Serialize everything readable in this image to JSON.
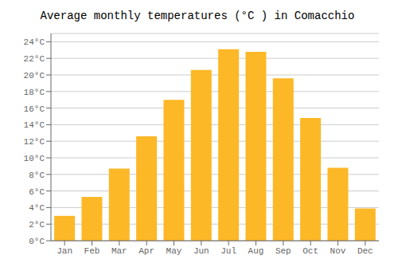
{
  "chart_data": {
    "type": "bar",
    "title": "Average monthly temperatures (°C ) in Comacchio",
    "categories": [
      "Jan",
      "Feb",
      "Mar",
      "Apr",
      "May",
      "Jun",
      "Jul",
      "Aug",
      "Sep",
      "Oct",
      "Nov",
      "Dec"
    ],
    "values": [
      3.0,
      5.3,
      8.7,
      12.6,
      17.0,
      20.6,
      23.1,
      22.8,
      19.6,
      14.8,
      8.8,
      3.9
    ],
    "color": "#FDB827",
    "ylim": [
      0,
      25
    ],
    "yticks": [
      {
        "value": 0,
        "label": "0°C"
      },
      {
        "value": 2,
        "label": "2°C"
      },
      {
        "value": 4,
        "label": "4°C"
      },
      {
        "value": 6,
        "label": "6°C"
      },
      {
        "value": 8,
        "label": "8°C"
      },
      {
        "value": 10,
        "label": "10°C"
      },
      {
        "value": 12,
        "label": "12°C"
      },
      {
        "value": 14,
        "label": "14°C"
      },
      {
        "value": 16,
        "label": "16°C"
      },
      {
        "value": 18,
        "label": "18°C"
      },
      {
        "value": 20,
        "label": "20°C"
      },
      {
        "value": 22,
        "label": "22°C"
      },
      {
        "value": 24,
        "label": "24°C"
      }
    ],
    "grid": true
  }
}
